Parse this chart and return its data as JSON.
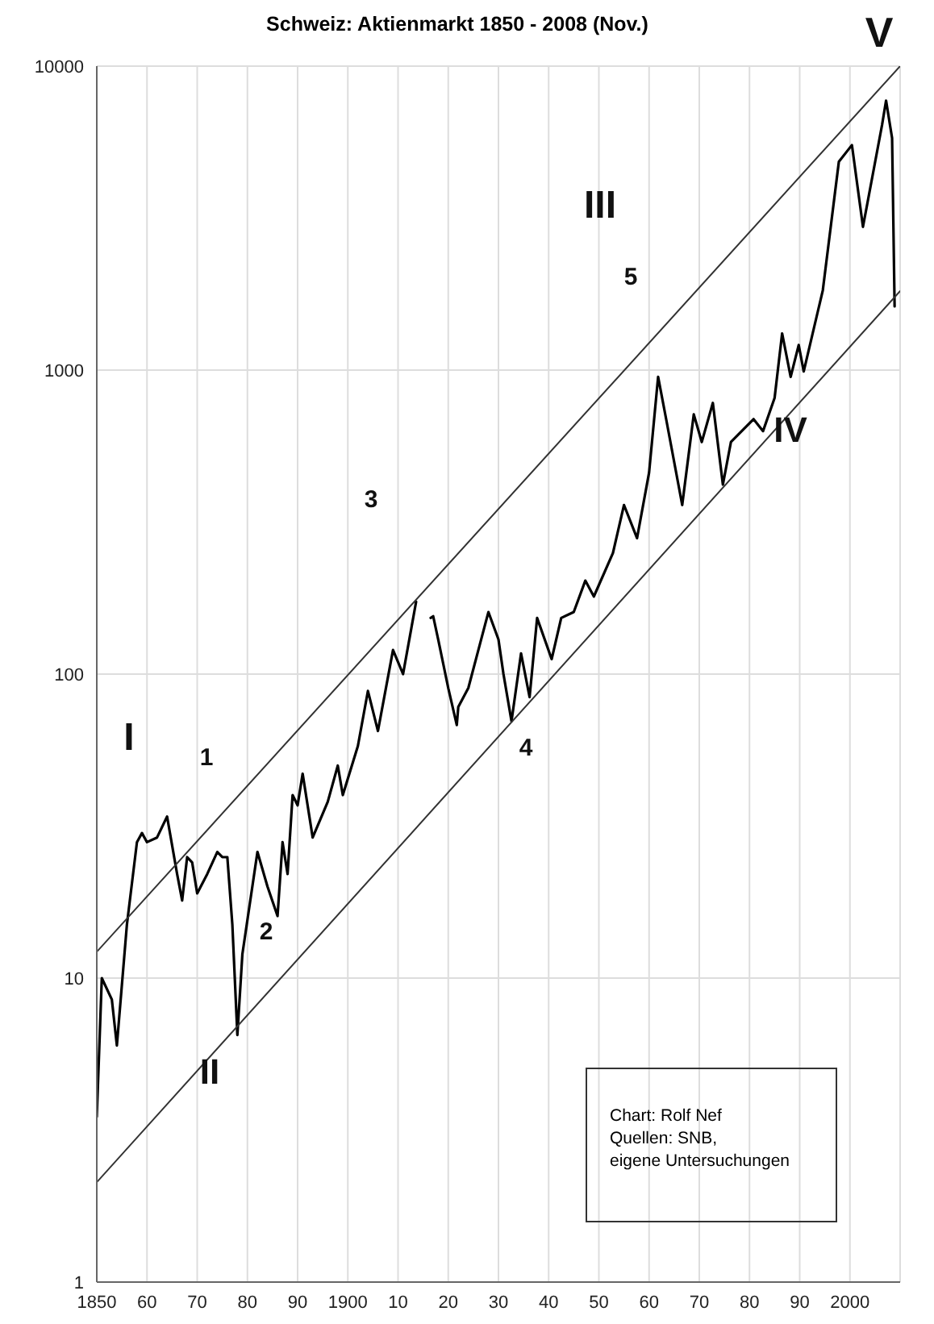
{
  "chart_data": {
    "type": "line",
    "title": "Schweiz: Aktienmarkt 1850 - 2008 (Nov.)",
    "log": "y",
    "grid": true,
    "xlim": [
      1850,
      2010
    ],
    "xticks": [
      1850,
      {
        "value": 1860,
        "label": "60"
      },
      {
        "value": 1870,
        "label": "70"
      },
      {
        "value": 1880,
        "label": "80"
      },
      {
        "value": 1890,
        "label": "90"
      },
      1900,
      {
        "value": 1910,
        "label": "10"
      },
      {
        "value": 1920,
        "label": "20"
      },
      {
        "value": 1930,
        "label": "30"
      },
      {
        "value": 1940,
        "label": "40"
      },
      {
        "value": 1950,
        "label": "50"
      },
      {
        "value": 1960,
        "label": "60"
      },
      {
        "value": 1970,
        "label": "70"
      },
      {
        "value": 1980,
        "label": "80"
      },
      {
        "value": 1990,
        "label": "90"
      },
      2000
    ],
    "ylim": [
      1,
      10000
    ],
    "yticks": [
      1,
      10,
      100,
      1000,
      10000
    ],
    "series": [
      {
        "color": "#000000",
        "x": [
          1850,
          1851,
          1853,
          1854,
          1856,
          1858,
          1859,
          1860,
          1862,
          1864,
          1866,
          1867,
          1868,
          1869,
          1870,
          1872,
          1874,
          1875,
          1876,
          1877,
          1878,
          1879,
          1882,
          1884,
          1886,
          1887,
          1888,
          1889,
          1890,
          1891,
          1893,
          1896,
          1898,
          1899,
          1902,
          1904,
          1906,
          1909,
          1911,
          1913.6,
          1915,
          1916.5,
          1917,
          1918,
          1920,
          1921.7,
          1922,
          1924,
          1926,
          1928,
          1930,
          1931,
          1932.6,
          1934.5,
          1936.2,
          1937.7,
          1940.6,
          1942.5,
          1945,
          1947.3,
          1949,
          1952.8,
          1955,
          1957.6,
          1960,
          1961.8,
          1963.4,
          1966.6,
          1968.9,
          1970.5,
          1972.7,
          1974.7,
          1976.3,
          1980.8,
          1982.7,
          1985,
          1986.5,
          1988.2,
          1989.8,
          1990.8,
          1994.6,
          1997.8,
          2000.4,
          2002.6,
          2006.4,
          2007.2,
          2008.4,
          2008.9
        ],
        "values": [
          3.5,
          10,
          8.5,
          6,
          15,
          28,
          30,
          28,
          29,
          34,
          22,
          18,
          25,
          24,
          19,
          22,
          26,
          25,
          25,
          15,
          6.5,
          12,
          26,
          20,
          16,
          28,
          22,
          40,
          37,
          47,
          29,
          38,
          50,
          40,
          58,
          88,
          65,
          120,
          100,
          173,
          null,
          153,
          155,
          130,
          90,
          68,
          78,
          90,
          120,
          160,
          130,
          100,
          70,
          117,
          84,
          153,
          112,
          153,
          160,
          203,
          180,
          250,
          360,
          280,
          460,
          950,
          690,
          360,
          715,
          580,
          780,
          420,
          580,
          690,
          630,
          810,
          1320,
          950,
          1210,
          990,
          1830,
          4850,
          5500,
          2960,
          6400,
          7700,
          5800,
          1620
        ]
      },
      {
        "type": "line",
        "color": "#333333",
        "x": [
          1850,
          2010
        ],
        "values": [
          12.2,
          10000
        ]
      },
      {
        "type": "line",
        "color": "#333333",
        "x": [
          1850,
          2010
        ],
        "values": [
          2.13,
          1820
        ]
      }
    ],
    "annotations": [
      "I",
      "1",
      "2",
      "II",
      "3",
      "4",
      "III",
      "5",
      "IV",
      "V",
      "Chart: Rolf Nef\nQuellen: SNB,\neigene Untersuchungen"
    ]
  }
}
